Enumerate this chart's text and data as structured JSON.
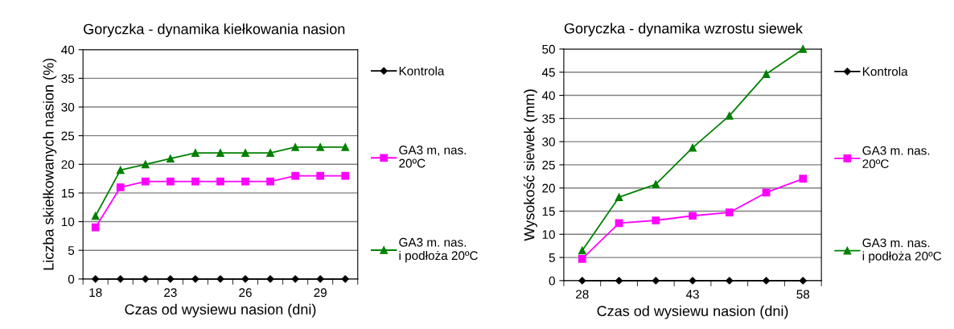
{
  "chart_data": [
    {
      "type": "line",
      "title": "Goryczka - dynamika kiełkowania nasion",
      "xlabel": "Czas od wysiewu nasion (dni)",
      "ylabel": "Liczba skiełkowanych nasion (%)",
      "categories": [
        "18",
        null,
        null,
        "23",
        null,
        null,
        "26",
        null,
        null,
        "29",
        null
      ],
      "ylim": [
        0,
        40
      ],
      "yticks": [
        0,
        5,
        10,
        15,
        20,
        25,
        30,
        35,
        40
      ],
      "grid": "y",
      "legend": "right",
      "series": [
        {
          "name": "Kontrola",
          "color": "#000000",
          "marker": "diamond",
          "values": [
            0,
            0,
            0,
            0,
            0,
            0,
            0,
            0,
            0,
            0,
            0
          ]
        },
        {
          "name": "GA3 m, nas. 20ºC",
          "color": "#ff00ff",
          "marker": "square",
          "values": [
            9,
            16,
            17,
            17,
            17,
            17,
            17,
            17,
            18,
            18,
            18
          ]
        },
        {
          "name": "GA3 m. nas. i podłoża 20ºC",
          "color": "#008000",
          "marker": "triangle",
          "values": [
            11,
            19,
            20,
            21,
            22,
            22,
            22,
            22,
            23,
            23,
            23
          ]
        }
      ]
    },
    {
      "type": "line",
      "title": "Goryczka - dynamika wzrostu siewek",
      "xlabel": "Czas od wysiewu nasion (dni)",
      "ylabel": "Wysokość siewek (mm)",
      "categories": [
        "28",
        null,
        null,
        "43",
        null,
        null,
        "58"
      ],
      "ylim": [
        0,
        50
      ],
      "yticks": [
        0,
        5,
        10,
        15,
        20,
        25,
        30,
        35,
        40,
        45,
        50
      ],
      "grid": "y",
      "legend": "right",
      "series": [
        {
          "name": "Kontrola",
          "color": "#000000",
          "marker": "diamond",
          "values": [
            0,
            0,
            0,
            0,
            0,
            0,
            0
          ]
        },
        {
          "name": "GA3 m. nas. 20ºC",
          "color": "#ff00ff",
          "marker": "square",
          "values": [
            4.7,
            12.4,
            13,
            14,
            14.7,
            19,
            22
          ]
        },
        {
          "name": "GA3 m. nas. i podłoża 20ºC",
          "color": "#008000",
          "marker": "triangle",
          "values": [
            6.5,
            18,
            20.8,
            28.7,
            35.6,
            44.6,
            50
          ]
        }
      ]
    }
  ]
}
